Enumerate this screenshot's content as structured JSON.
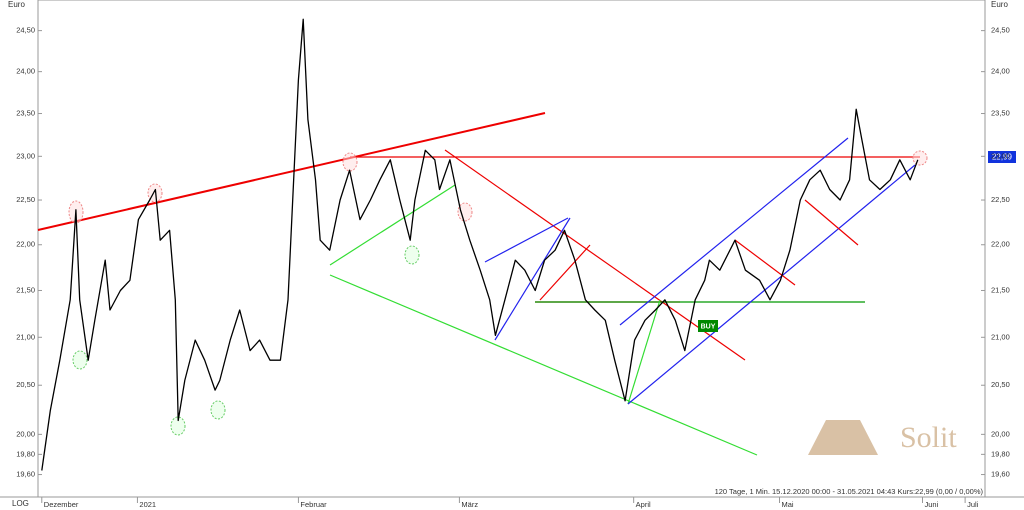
{
  "chart_data": {
    "type": "line",
    "log_scale": true,
    "grid": false,
    "y_unit": "Euro",
    "scale_label": "LOG",
    "info": "120 Tage, 1 Min. 15.12.2020 00:00 - 31.05.2021 04:43 Kurs:22,99 (0,00 / 0,00%)",
    "last_price_label": "22,99",
    "signal": "BUY",
    "watermark": "Solit",
    "xlim": [
      0,
      100
    ],
    "ylim": [
      19.38,
      24.88
    ],
    "xticks": [
      {
        "value": 0.4,
        "label": "Dezember"
      },
      {
        "value": 10.5,
        "label": "2021"
      },
      {
        "value": 27.5,
        "label": "Februar"
      },
      {
        "value": 44.5,
        "label": "März"
      },
      {
        "value": 62.9,
        "label": "April"
      },
      {
        "value": 78.3,
        "label": "Mai"
      },
      {
        "value": 93.4,
        "label": "Juni"
      },
      {
        "value": 97.9,
        "label": "Juli"
      }
    ],
    "yticks": [
      {
        "value": 19.6,
        "label": "19,60"
      },
      {
        "value": 19.8,
        "label": "19,80"
      },
      {
        "value": 20,
        "label": "20,00"
      },
      {
        "value": 20.5,
        "label": "20,50"
      },
      {
        "value": 21,
        "label": "21,00"
      },
      {
        "value": 21.5,
        "label": "21,50"
      },
      {
        "value": 22,
        "label": "22,00"
      },
      {
        "value": 22.5,
        "label": "22,50"
      },
      {
        "value": 23,
        "label": "23,00"
      },
      {
        "value": 23.5,
        "label": "23,50"
      },
      {
        "value": 24,
        "label": "24,00"
      },
      {
        "value": 24.5,
        "label": "24,50"
      }
    ],
    "series": [
      {
        "color": "#000000",
        "x": [
          0.4,
          1.3,
          2.3,
          3.4,
          4.0,
          4.4,
          5.3,
          6.0,
          7.1,
          7.6,
          8.7,
          9.7,
          10.6,
          11.8,
          12.4,
          12.9,
          13.9,
          14.5,
          14.8,
          15.5,
          16.6,
          17.6,
          18.7,
          19.2,
          20.3,
          21.3,
          22.4,
          23.4,
          24.5,
          25.6,
          26.4,
          26.9,
          27.5,
          28.0,
          28.5,
          29.3,
          29.8,
          30.8,
          31.9,
          32.9,
          34.0,
          35.1,
          36.1,
          37.2,
          38.2,
          39.3,
          39.8,
          40.9,
          41.9,
          42.4,
          43.5,
          44.6,
          45.6,
          46.7,
          47.7,
          48.3,
          49.3,
          50.4,
          51.4,
          52.5,
          53.5,
          54.6,
          55.6,
          56.7,
          57.8,
          58.8,
          59.9,
          60.9,
          62.0,
          63.0,
          64.1,
          65.2,
          66.2,
          67.3,
          68.3,
          69.4,
          70.4,
          70.9,
          72.0,
          73.6,
          74.7,
          76.2,
          77.3,
          78.4,
          79.4,
          80.5,
          81.5,
          82.6,
          83.6,
          84.7,
          85.7,
          86.4,
          87.0,
          87.8,
          88.9,
          90.0,
          91.0,
          92.1,
          92.9
        ],
        "values": [
          19.64,
          20.24,
          20.76,
          21.4,
          22.39,
          21.4,
          20.76,
          21.18,
          21.83,
          21.29,
          21.5,
          21.61,
          22.28,
          22.5,
          22.62,
          22.05,
          22.16,
          21.4,
          20.14,
          20.55,
          20.97,
          20.76,
          20.45,
          20.55,
          20.97,
          21.29,
          20.86,
          20.97,
          20.76,
          20.76,
          21.4,
          22.5,
          23.9,
          24.64,
          23.43,
          22.73,
          22.05,
          21.94,
          22.5,
          22.84,
          22.28,
          22.5,
          22.73,
          22.96,
          22.5,
          22.05,
          22.5,
          23.07,
          22.96,
          22.62,
          22.96,
          22.39,
          22.05,
          21.72,
          21.4,
          21.02,
          21.4,
          21.83,
          21.72,
          21.5,
          21.83,
          21.94,
          22.16,
          21.83,
          21.4,
          21.29,
          21.18,
          20.76,
          20.34,
          20.97,
          21.18,
          21.29,
          21.4,
          21.18,
          20.86,
          21.4,
          21.61,
          21.83,
          21.72,
          22.05,
          21.72,
          21.61,
          21.4,
          21.61,
          21.94,
          22.5,
          22.73,
          22.84,
          22.62,
          22.5,
          22.73,
          23.55,
          23.19,
          22.73,
          22.62,
          22.73,
          22.96,
          22.73,
          22.96
        ]
      }
    ]
  }
}
